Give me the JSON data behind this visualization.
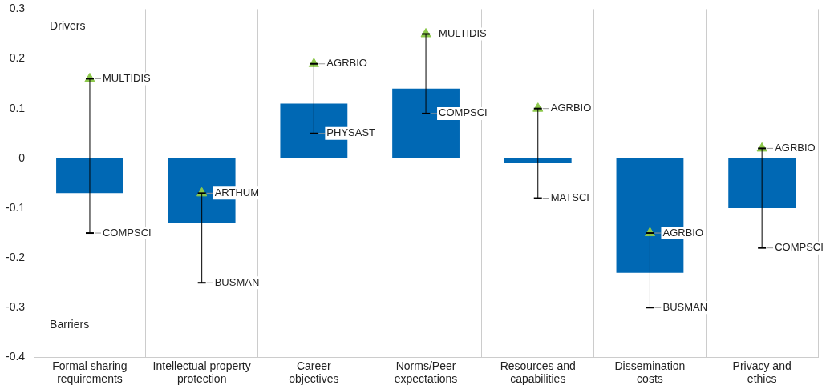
{
  "chart_data": {
    "type": "bar",
    "categories": [
      "Formal sharing requirements",
      "Intellectual property protection",
      "Career objectives",
      "Norms/Peer expectations",
      "Resources and capabilities",
      "Dissemination costs",
      "Privacy and ethics"
    ],
    "series": [
      {
        "color": "#0068b4",
        "values": [
          -0.07,
          -0.13,
          0.11,
          0.14,
          -0.01,
          -0.23,
          -0.1
        ],
        "errors": [
          [
            -0.15,
            0.16
          ],
          [
            -0.25,
            -0.07
          ],
          [
            0.05,
            0.19
          ],
          [
            0.09,
            0.25
          ],
          [
            -0.08,
            0.1
          ],
          [
            -0.3,
            -0.15
          ],
          [
            -0.18,
            0.02
          ]
        ]
      },
      {
        "type": "scatter",
        "color": "#8cc84b",
        "marker": "triangle",
        "x": [
          "Formal sharing requirements",
          "Intellectual property protection",
          "Career objectives",
          "Norms/Peer expectations",
          "Resources and capabilities",
          "Dissemination costs",
          "Privacy and ethics"
        ],
        "values": [
          0.16,
          -0.07,
          0.19,
          0.25,
          0.1,
          -0.15,
          0.02
        ]
      }
    ],
    "ylim": [
      -0.4,
      0.3
    ],
    "yticks": [
      -0.4,
      -0.3,
      -0.2,
      -0.1,
      0,
      0.1,
      0.2,
      0.3
    ],
    "grid": "x",
    "legend": false,
    "annotations": [
      "Drivers",
      "Barriers",
      {
        "text": "MULTIDIS",
        "x": "Formal sharing requirements",
        "y": 0.16
      },
      {
        "text": "COMPSCI",
        "x": "Formal sharing requirements",
        "y": -0.15
      },
      {
        "text": "ARTHUM",
        "x": "Intellectual property protection",
        "y": -0.07
      },
      {
        "text": "BUSMAN",
        "x": "Intellectual property protection",
        "y": -0.25
      },
      {
        "text": "AGRBIO",
        "x": "Career objectives",
        "y": 0.19
      },
      {
        "text": "PHYSAST",
        "x": "Career objectives",
        "y": 0.05
      },
      {
        "text": "MULTIDIS",
        "x": "Norms/Peer expectations",
        "y": 0.25
      },
      {
        "text": "COMPSCI",
        "x": "Norms/Peer expectations",
        "y": 0.09
      },
      {
        "text": "AGRBIO",
        "x": "Resources and capabilities",
        "y": 0.1
      },
      {
        "text": "MATSCI",
        "x": "Resources and capabilities",
        "y": -0.08
      },
      {
        "text": "AGRBIO",
        "x": "Dissemination costs",
        "y": -0.15
      },
      {
        "text": "BUSMAN",
        "x": "Dissemination costs",
        "y": -0.3
      },
      {
        "text": "AGRBIO",
        "x": "Privacy and ethics",
        "y": 0.02
      },
      {
        "text": "COMPSCI",
        "x": "Privacy and ethics",
        "y": -0.18
      }
    ]
  }
}
